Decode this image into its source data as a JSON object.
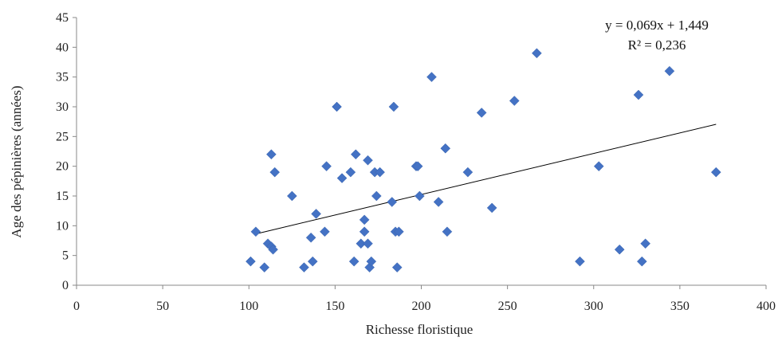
{
  "chart_data": {
    "type": "scatter",
    "xlabel": "Richesse floristique",
    "ylabel": "Age des pépinières  (années)",
    "xlim": [
      0,
      400
    ],
    "ylim": [
      0,
      45
    ],
    "xticks": [
      0,
      50,
      100,
      150,
      200,
      250,
      300,
      350,
      400
    ],
    "yticks": [
      0,
      5,
      10,
      15,
      20,
      25,
      30,
      35,
      40,
      45
    ],
    "grid": false,
    "marker": "diamond",
    "marker_color": "#4472C4",
    "trendline": {
      "slope": 0.069,
      "intercept": 1.449,
      "x_range": [
        104,
        371
      ],
      "color": "#000000"
    },
    "annotation": {
      "equation": "y = 0,069x + 1,449",
      "r2": "R² = 0,236"
    },
    "points": [
      {
        "x": 101,
        "y": 4
      },
      {
        "x": 104,
        "y": 9
      },
      {
        "x": 109,
        "y": 3
      },
      {
        "x": 111,
        "y": 7
      },
      {
        "x": 113,
        "y": 22
      },
      {
        "x": 113,
        "y": 6.5
      },
      {
        "x": 114,
        "y": 6
      },
      {
        "x": 115,
        "y": 19
      },
      {
        "x": 125,
        "y": 15
      },
      {
        "x": 132,
        "y": 3
      },
      {
        "x": 136,
        "y": 8
      },
      {
        "x": 137,
        "y": 4
      },
      {
        "x": 139,
        "y": 12
      },
      {
        "x": 144,
        "y": 9
      },
      {
        "x": 145,
        "y": 20
      },
      {
        "x": 151,
        "y": 30
      },
      {
        "x": 154,
        "y": 18
      },
      {
        "x": 159,
        "y": 19
      },
      {
        "x": 161,
        "y": 4
      },
      {
        "x": 162,
        "y": 22
      },
      {
        "x": 165,
        "y": 7
      },
      {
        "x": 167,
        "y": 11
      },
      {
        "x": 167,
        "y": 9
      },
      {
        "x": 169,
        "y": 21
      },
      {
        "x": 169,
        "y": 7
      },
      {
        "x": 170,
        "y": 3
      },
      {
        "x": 171,
        "y": 4
      },
      {
        "x": 173,
        "y": 19
      },
      {
        "x": 174,
        "y": 15
      },
      {
        "x": 176,
        "y": 19
      },
      {
        "x": 183,
        "y": 14
      },
      {
        "x": 184,
        "y": 30
      },
      {
        "x": 185,
        "y": 9
      },
      {
        "x": 186,
        "y": 3
      },
      {
        "x": 187,
        "y": 9
      },
      {
        "x": 197,
        "y": 20
      },
      {
        "x": 198,
        "y": 20
      },
      {
        "x": 199,
        "y": 15
      },
      {
        "x": 206,
        "y": 35
      },
      {
        "x": 210,
        "y": 14
      },
      {
        "x": 214,
        "y": 23
      },
      {
        "x": 215,
        "y": 9
      },
      {
        "x": 227,
        "y": 19
      },
      {
        "x": 235,
        "y": 29
      },
      {
        "x": 241,
        "y": 13
      },
      {
        "x": 254,
        "y": 31
      },
      {
        "x": 267,
        "y": 39
      },
      {
        "x": 292,
        "y": 4
      },
      {
        "x": 303,
        "y": 20
      },
      {
        "x": 315,
        "y": 6
      },
      {
        "x": 326,
        "y": 32
      },
      {
        "x": 328,
        "y": 4
      },
      {
        "x": 330,
        "y": 7
      },
      {
        "x": 344,
        "y": 36
      },
      {
        "x": 371,
        "y": 19
      }
    ]
  }
}
